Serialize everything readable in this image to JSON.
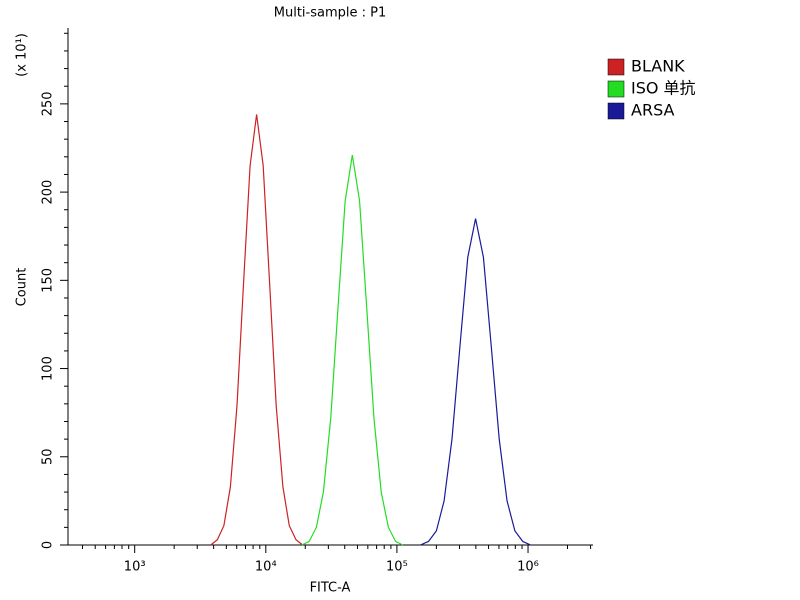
{
  "chart_data": {
    "type": "line",
    "title": "Multi-sample : P1",
    "x_label": "FITC-A",
    "y_label": "Count",
    "y_annotation": "(x 10¹)",
    "xscale": "log",
    "xlim": [
      310,
      3130000
    ],
    "ylim": [
      0,
      293
    ],
    "xticks": [
      {
        "value": 1000,
        "label": "10³"
      },
      {
        "value": 10000,
        "label": "10⁴"
      },
      {
        "value": 100000,
        "label": "10⁵"
      },
      {
        "value": 1000000,
        "label": "10⁶"
      }
    ],
    "xminor_ticks": [
      400,
      500,
      600,
      700,
      800,
      900,
      2000,
      3000,
      4000,
      5000,
      6000,
      7000,
      8000,
      9000,
      20000,
      30000,
      40000,
      50000,
      60000,
      70000,
      80000,
      90000,
      200000,
      300000,
      400000,
      500000,
      600000,
      700000,
      800000,
      900000,
      2000000,
      3000000
    ],
    "yticks": [
      0,
      50,
      100,
      150,
      200,
      250
    ],
    "yminor_ticks": [
      10,
      20,
      30,
      40,
      60,
      70,
      80,
      90,
      110,
      120,
      130,
      140,
      160,
      170,
      180,
      190,
      210,
      220,
      230,
      240,
      260,
      270,
      280,
      290
    ],
    "legend": "right",
    "series": [
      {
        "name": "BLANK",
        "color": "#cc2222",
        "x": [
          3800,
          4270,
          4790,
          5370,
          6030,
          6760,
          7590,
          8510,
          9550,
          10700,
          12000,
          13500,
          15100,
          17000,
          19100
        ],
        "values": [
          0,
          3,
          11,
          33,
          79,
          148,
          215,
          244,
          215,
          148,
          79,
          33,
          11,
          3,
          0
        ]
      },
      {
        "name": "ISO 单抗",
        "color": "#22dd22",
        "x": [
          18800,
          21400,
          24300,
          27500,
          31300,
          35500,
          40300,
          45700,
          51900,
          58900,
          66800,
          75900,
          86100,
          97700,
          110900
        ],
        "values": [
          0,
          2,
          10,
          30,
          72,
          134,
          195,
          221,
          195,
          134,
          72,
          30,
          10,
          2,
          0
        ]
      },
      {
        "name": "ARSA",
        "color": "#1a1a99",
        "x": [
          151000,
          174000,
          200000,
          229000,
          263000,
          302000,
          347000,
          398000,
          457000,
          525000,
          603000,
          692000,
          794000,
          912000,
          1047000
        ],
        "values": [
          0,
          2,
          8,
          25,
          60,
          112,
          163,
          185,
          163,
          112,
          60,
          25,
          8,
          2,
          0
        ]
      }
    ]
  }
}
